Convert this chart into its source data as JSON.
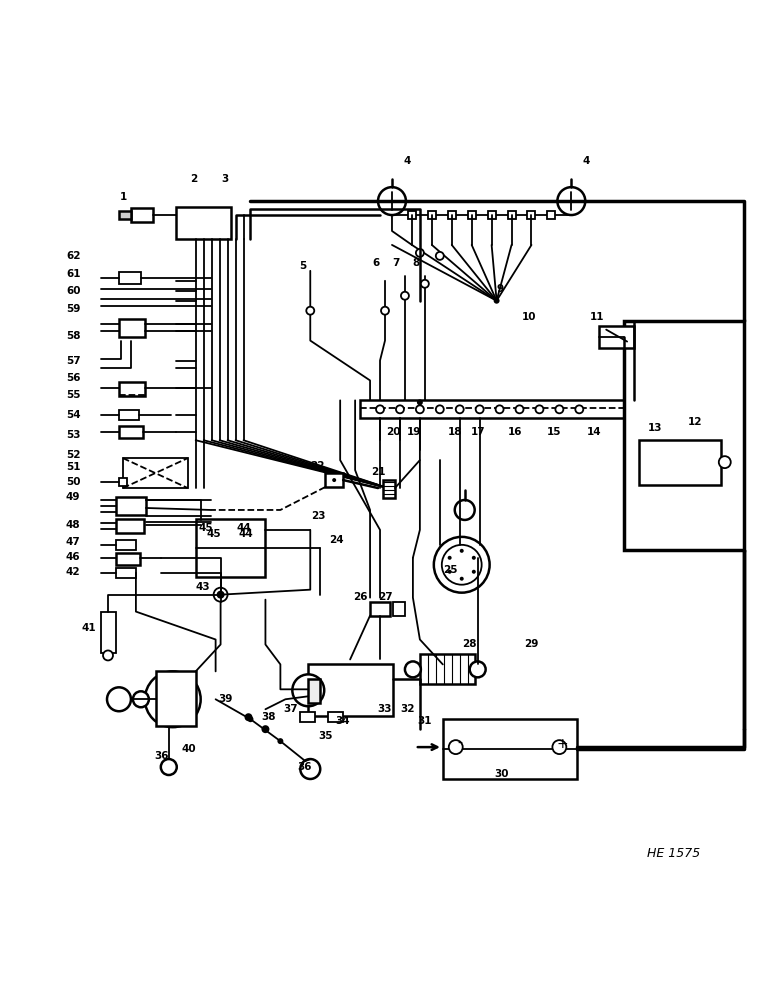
{
  "bg_color": "#ffffff",
  "line_color": "#000000",
  "fig_width": 7.72,
  "fig_height": 10.0,
  "dpi": 100,
  "watermark": "HE 1575"
}
